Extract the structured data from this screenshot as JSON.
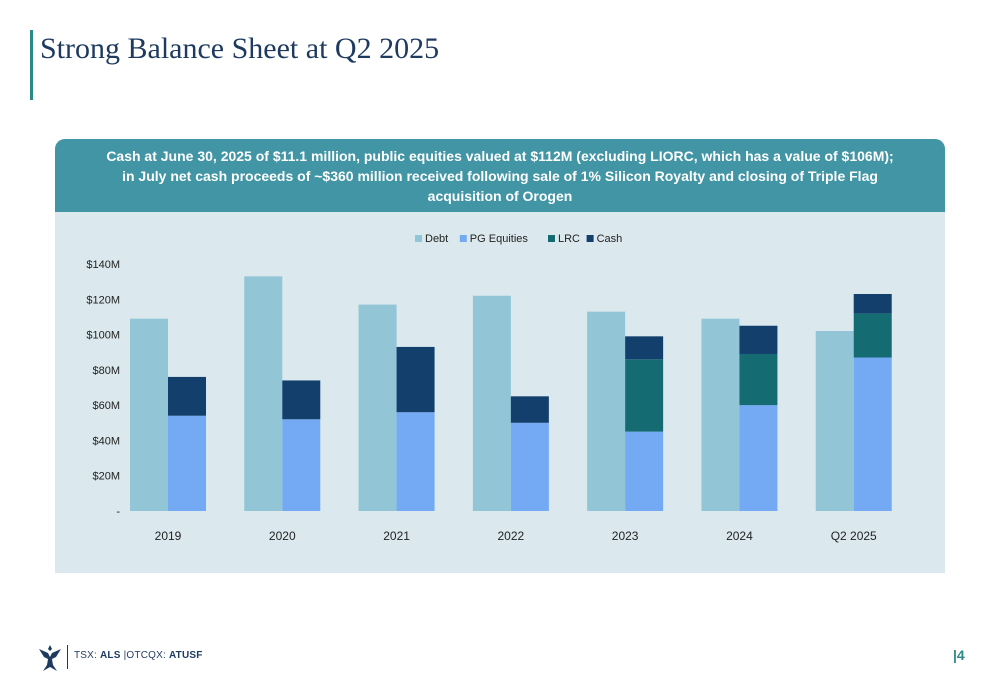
{
  "slide": {
    "title": "Strong Balance Sheet at Q2 2025",
    "page_number": "|4"
  },
  "panel": {
    "header": "Cash at June 30, 2025 of $11.1 million, public equities valued at $112M (excluding LIORC, which has a value of $106M); in July net cash proceeds of ~$360 million received following sale of 1% Silicon Royalty and closing of Triple Flag acquisition of Orogen"
  },
  "footer": {
    "tsx_label": "TSX:",
    "tsx_symbol": "ALS",
    "separator": "|",
    "otc_label": "OTCQX:",
    "otc_symbol": "ATUSF",
    "logo_icon": "eagle-logo-icon"
  },
  "colors": {
    "debt": "#92c5d6",
    "pg_equities": "#74a9f4",
    "lrc": "#146b72",
    "cash": "#133f6c",
    "accent": "#2b8a85",
    "header_band": "#4195a4",
    "panel_bg": "#dbe9ee"
  },
  "chart_data": {
    "type": "bar",
    "title": "",
    "xlabel": "",
    "ylabel": "",
    "categories": [
      "2019",
      "2020",
      "2021",
      "2022",
      "2023",
      "2024",
      "Q2 2025"
    ],
    "ylim": [
      0,
      140
    ],
    "y_ticks": [
      0,
      20,
      40,
      60,
      80,
      100,
      120,
      140
    ],
    "y_tick_labels": [
      "-",
      "$20M",
      "$40M",
      "$60M",
      "$80M",
      "$100M",
      "$120M",
      "$140M"
    ],
    "legend_position": "top-center",
    "grid": false,
    "series": [
      {
        "name": "Debt",
        "stack": "debt",
        "color": "#92c5d6",
        "values": [
          109,
          133,
          117,
          122,
          113,
          109,
          102
        ]
      },
      {
        "name": "PG Equities",
        "stack": "assets",
        "color": "#74a9f4",
        "values": [
          54,
          52,
          56,
          50,
          45,
          60,
          87
        ]
      },
      {
        "name": "LRC",
        "stack": "assets",
        "color": "#146b72",
        "values": [
          0,
          0,
          0,
          0,
          41,
          29,
          25
        ]
      },
      {
        "name": "Cash",
        "stack": "assets",
        "color": "#133f6c",
        "values": [
          22,
          22,
          37,
          15,
          13,
          16,
          11
        ]
      }
    ]
  }
}
